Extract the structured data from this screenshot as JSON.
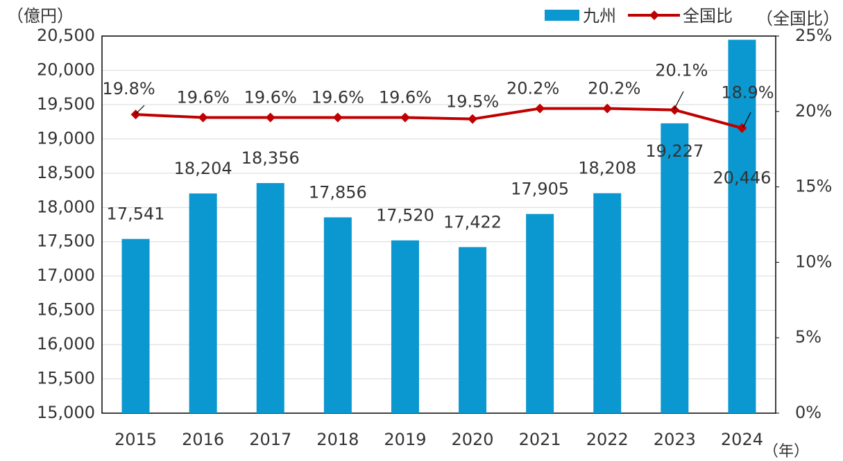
{
  "chart_data": {
    "type": "bar",
    "y_label": "（億円）",
    "y2_label": "（全国比）",
    "x_label": "（年）",
    "categories": [
      "2015",
      "2016",
      "2017",
      "2018",
      "2019",
      "2020",
      "2021",
      "2022",
      "2023",
      "2024"
    ],
    "series": [
      {
        "name": "九州",
        "type": "bar",
        "color": "#0b97cf",
        "values": [
          17541,
          18204,
          18356,
          17856,
          17520,
          17422,
          17905,
          18208,
          19227,
          20446
        ],
        "value_labels": [
          "17,541",
          "18,204",
          "18,356",
          "17,856",
          "17,520",
          "17,422",
          "17,905",
          "18,208",
          "19,227",
          "20,446"
        ]
      },
      {
        "name": "全国比",
        "type": "line",
        "axis": "y2",
        "color": "#c00000",
        "values": [
          19.8,
          19.6,
          19.6,
          19.6,
          19.6,
          19.5,
          20.2,
          20.2,
          20.1,
          18.9
        ],
        "value_labels": [
          "19.8%",
          "19.6%",
          "19.6%",
          "19.6%",
          "19.6%",
          "19.5%",
          "20.2%",
          "20.2%",
          "20.1%",
          "18.9%"
        ]
      }
    ],
    "ylim": [
      15000,
      20500
    ],
    "yticks": [
      {
        "value": 15000,
        "label": "15,000"
      },
      {
        "value": 15500,
        "label": "15,500"
      },
      {
        "value": 16000,
        "label": "16,000"
      },
      {
        "value": 16500,
        "label": "16,500"
      },
      {
        "value": 17000,
        "label": "17,000"
      },
      {
        "value": 17500,
        "label": "17,500"
      },
      {
        "value": 18000,
        "label": "18,000"
      },
      {
        "value": 18500,
        "label": "18,500"
      },
      {
        "value": 19000,
        "label": "19,000"
      },
      {
        "value": 19500,
        "label": "19,500"
      },
      {
        "value": 20000,
        "label": "20,000"
      },
      {
        "value": 20500,
        "label": "20,500"
      }
    ],
    "y2lim": [
      0,
      25
    ],
    "y2ticks": [
      {
        "value": 0,
        "label": "0%"
      },
      {
        "value": 5,
        "label": "5%"
      },
      {
        "value": 10,
        "label": "10%"
      },
      {
        "value": 15,
        "label": "15%"
      },
      {
        "value": 20,
        "label": "20%"
      },
      {
        "value": 25,
        "label": "25%"
      }
    ],
    "grid": true,
    "legend": "top-right"
  }
}
